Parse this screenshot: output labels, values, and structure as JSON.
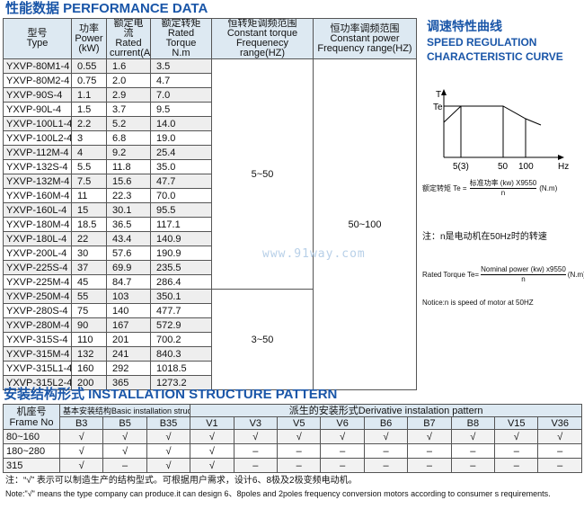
{
  "performance": {
    "title": "性能数据 PERFORMANCE DATA",
    "headers": [
      [
        "型号",
        "Type"
      ],
      [
        "功率",
        "Power",
        "(kW)"
      ],
      [
        "额定电流",
        "Rated",
        "current(A)"
      ],
      [
        "额定转矩",
        "Rated Torque",
        "N.m"
      ],
      [
        "恒转矩调频范围",
        "Constant torque",
        "Frequenecy range(HZ)"
      ],
      [
        "恒功率调频范围",
        "Constant power",
        "Frequency range(HZ)"
      ]
    ],
    "rows": [
      [
        "YXVP-80M1-4",
        "0.55",
        "1.6",
        "3.5"
      ],
      [
        "YXVP-80M2-4",
        "0.75",
        "2.0",
        "4.7"
      ],
      [
        "YXVP-90S-4",
        "1.1",
        "2.9",
        "7.0"
      ],
      [
        "YXVP-90L-4",
        "1.5",
        "3.7",
        "9.5"
      ],
      [
        "YXVP-100L1-4",
        "2.2",
        "5.2",
        "14.0"
      ],
      [
        "YXVP-100L2-4",
        "3",
        "6.8",
        "19.0"
      ],
      [
        "YXVP-112M-4",
        "4",
        "9.2",
        "25.4"
      ],
      [
        "YXVP-132S-4",
        "5.5",
        "11.8",
        "35.0"
      ],
      [
        "YXVP-132M-4",
        "7.5",
        "15.6",
        "47.7"
      ],
      [
        "YXVP-160M-4",
        "11",
        "22.3",
        "70.0"
      ],
      [
        "YXVP-160L-4",
        "15",
        "30.1",
        "95.5"
      ],
      [
        "YXVP-180M-4",
        "18.5",
        "36.5",
        "117.1"
      ],
      [
        "YXVP-180L-4",
        "22",
        "43.4",
        "140.9"
      ],
      [
        "YXVP-200L-4",
        "30",
        "57.6",
        "190.9"
      ],
      [
        "YXVP-225S-4",
        "37",
        "69.9",
        "235.5"
      ],
      [
        "YXVP-225M-4",
        "45",
        "84.7",
        "286.4"
      ],
      [
        "YXVP-250M-4",
        "55",
        "103",
        "350.1"
      ],
      [
        "YXVP-280S-4",
        "75",
        "140",
        "477.7"
      ],
      [
        "YXVP-280M-4",
        "90",
        "167",
        "572.9"
      ],
      [
        "YXVP-315S-4",
        "110",
        "201",
        "700.2"
      ],
      [
        "YXVP-315M-4",
        "132",
        "241",
        "840.3"
      ],
      [
        "YXVP-315L1-4",
        "160",
        "292",
        "1018.5"
      ],
      [
        "YXVP-315L2-4",
        "200",
        "365",
        "1273.2"
      ]
    ],
    "ct_range_1": "5~50",
    "ct_range_2": "3~50",
    "cp_range": "50~100"
  },
  "curve": {
    "title_cn": "调速特性曲线",
    "title_en1": "SPEED REGULATION",
    "title_en2": "CHARACTERISTIC CURVE",
    "y_label": "T",
    "te_label": "Te",
    "x_ticks": [
      "5(3)",
      "50",
      "100"
    ],
    "x_unit": "Hz",
    "formula_cn_left": "额定转矩 Te =",
    "formula_cn_num": "标准功率 (kw) X9550",
    "formula_den": "n",
    "formula_unit": "(N.m)",
    "note_cn": "注：n是电动机在50Hz时的转速",
    "formula_en_left": "Rated Torque Te=",
    "formula_en_num": "Nominal power (kw) x9550",
    "formula_en_unit": "(N.m)",
    "note_en": "Notice:n is speed of motor at 50HZ"
  },
  "watermark": "www.91way.com",
  "install": {
    "title": "安装结构形式 INSTALLATION STRUCTURE PATTERN",
    "frame_h1": "机座号",
    "frame_h2": "Frame No",
    "basic": "基本安装结构Basic installation structure",
    "derivative": "派生的安装形式Derivative instalation pattern",
    "cols": [
      "B3",
      "B5",
      "B35",
      "V1",
      "V3",
      "V5",
      "V6",
      "B6",
      "B7",
      "B8",
      "V15",
      "V36"
    ],
    "rows": [
      {
        "frame": "80~160",
        "v": [
          "√",
          "√",
          "√",
          "√",
          "√",
          "√",
          "√",
          "√",
          "√",
          "√",
          "√",
          "√"
        ]
      },
      {
        "frame": "180~280",
        "v": [
          "√",
          "√",
          "√",
          "√",
          "–",
          "–",
          "–",
          "–",
          "–",
          "–",
          "–",
          "–"
        ]
      },
      {
        "frame": "315",
        "v": [
          "√",
          "–",
          "√",
          "√",
          "–",
          "–",
          "–",
          "–",
          "–",
          "–",
          "–",
          "–"
        ]
      }
    ],
    "note_cn": "注：“√”   表示可以制造生产的结构型式。可根据用户需求，设计6、8极及2极变频电动机。",
    "note_en": "Note:\"√\" means the type company can produce.it can design 6、8poles and 2poles frequency conversion motors according to consumer s requirements."
  }
}
